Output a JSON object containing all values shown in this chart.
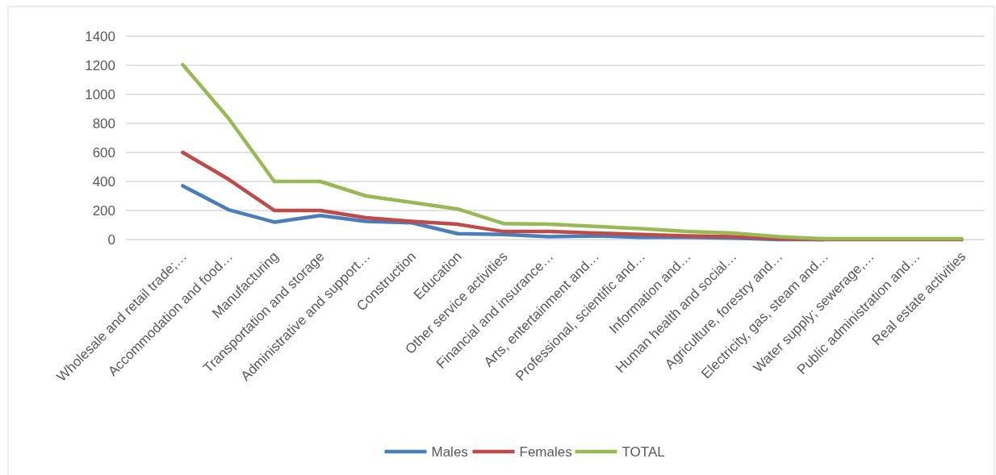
{
  "chart_data": {
    "type": "line",
    "categories": [
      "Wholesale and retail trade;…",
      "Accommodation and food…",
      "Manufacturing",
      "Transportation and storage",
      "Administrative and support…",
      "Construction",
      "Education",
      "Other service activities",
      "Financial and insurance…",
      "Arts, entertainment and…",
      "Professional, scientific and…",
      "Information and…",
      "Human health and social…",
      "Agriculture, forestry and…",
      "Electricity, gas, steam and…",
      "Water supply; sewerage,…",
      "Public administration and…",
      "Real estate activities"
    ],
    "series": [
      {
        "name": "Males",
        "color": "#4a7ebb",
        "values": [
          370,
          205,
          120,
          165,
          125,
          115,
          40,
          35,
          20,
          25,
          15,
          15,
          10,
          0,
          0,
          null,
          null,
          null
        ]
      },
      {
        "name": "Females",
        "color": "#be4b48",
        "values": [
          600,
          415,
          200,
          200,
          150,
          125,
          105,
          55,
          55,
          45,
          35,
          25,
          20,
          5,
          0,
          0,
          0,
          0
        ]
      },
      {
        "name": "TOTAL",
        "color": "#98b954",
        "values": [
          1205,
          835,
          400,
          400,
          300,
          255,
          210,
          110,
          105,
          90,
          75,
          55,
          45,
          20,
          5,
          5,
          5,
          5
        ]
      }
    ],
    "ylim": [
      0,
      1400
    ],
    "yticks": [
      0,
      200,
      400,
      600,
      800,
      1000,
      1200,
      1400
    ],
    "grid": "y",
    "legend": "bottom",
    "marker": "none",
    "line_style": "solid"
  }
}
